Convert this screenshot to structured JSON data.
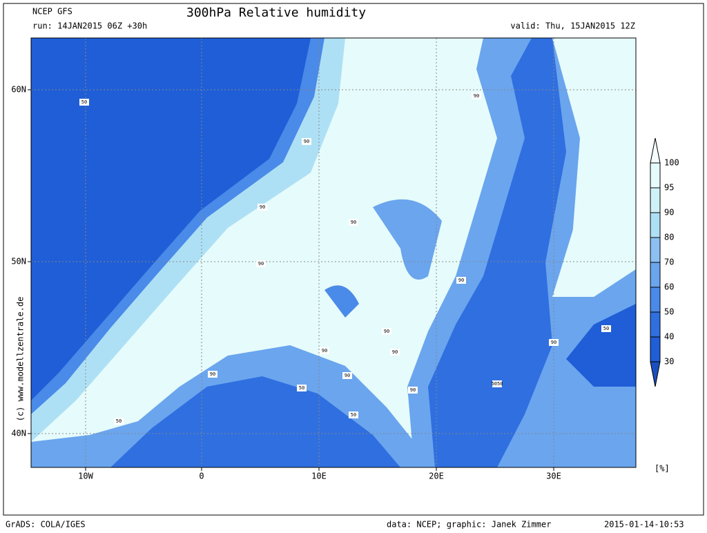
{
  "header": {
    "model": "NCEP GFS",
    "title": "300hPa Relative humidity",
    "run": "run: 14JAN2015 06Z +30h",
    "valid": "valid: Thu, 15JAN2015 12Z"
  },
  "map": {
    "lat_labels": [
      "60N",
      "50N",
      "40N"
    ],
    "lon_labels": [
      "10W",
      "0",
      "10E",
      "20E",
      "30E"
    ],
    "contour_labels": [
      "50",
      "90",
      "90",
      "90",
      "90",
      "90",
      "90",
      "90",
      "90",
      "90",
      "90",
      "90",
      "50",
      "50",
      "50",
      "5050",
      "50",
      "90",
      "90"
    ],
    "credit": "(c) www.modellzentrale.de"
  },
  "colorbar": {
    "levels": [
      100,
      95,
      90,
      80,
      70,
      60,
      50,
      40,
      30
    ],
    "unit": "[%]"
  },
  "footer": {
    "software": "GrADS: COLA/IGES",
    "source": "data: NCEP; graphic: Janek Zimmer",
    "timestamp": "2015-01-14-10:53"
  }
}
